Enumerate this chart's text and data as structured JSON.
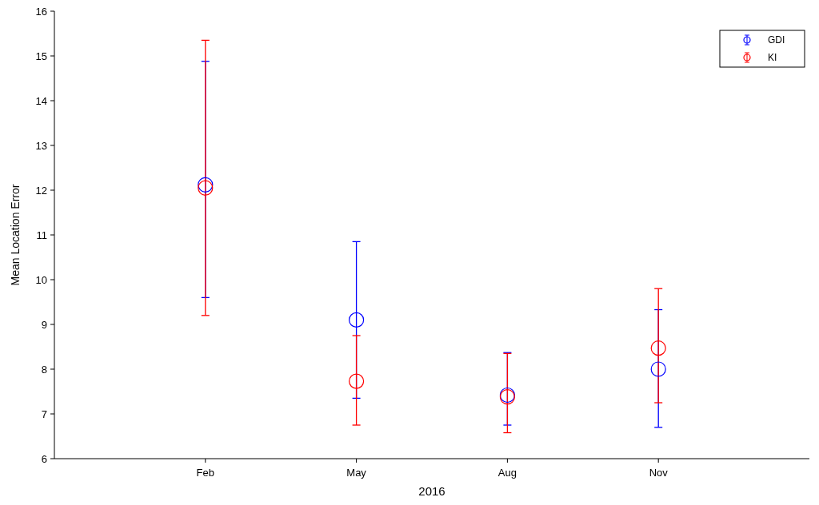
{
  "chart_data": {
    "type": "scatter",
    "xlabel": "2016",
    "ylabel": "Mean Location Error",
    "categories": [
      "Feb",
      "May",
      "Aug",
      "Nov"
    ],
    "ylim": [
      6,
      16
    ],
    "yticks": [
      6,
      7,
      8,
      9,
      10,
      11,
      12,
      13,
      14,
      15,
      16
    ],
    "marker": "circle",
    "legend": "top right",
    "grid": false,
    "series": [
      {
        "name": "GDI",
        "color": "#0000ff",
        "values": [
          12.12,
          9.1,
          7.42,
          8.0
        ],
        "errors": [
          [
            9.6,
            14.88
          ],
          [
            7.35,
            10.85
          ],
          [
            6.75,
            8.37
          ],
          [
            6.7,
            9.33
          ]
        ]
      },
      {
        "name": "KI",
        "color": "#ff0000",
        "values": [
          12.05,
          7.73,
          7.38,
          8.47
        ],
        "errors": [
          [
            9.2,
            15.35
          ],
          [
            6.75,
            8.75
          ],
          [
            6.58,
            8.35
          ],
          [
            7.25,
            9.8
          ]
        ]
      }
    ]
  }
}
